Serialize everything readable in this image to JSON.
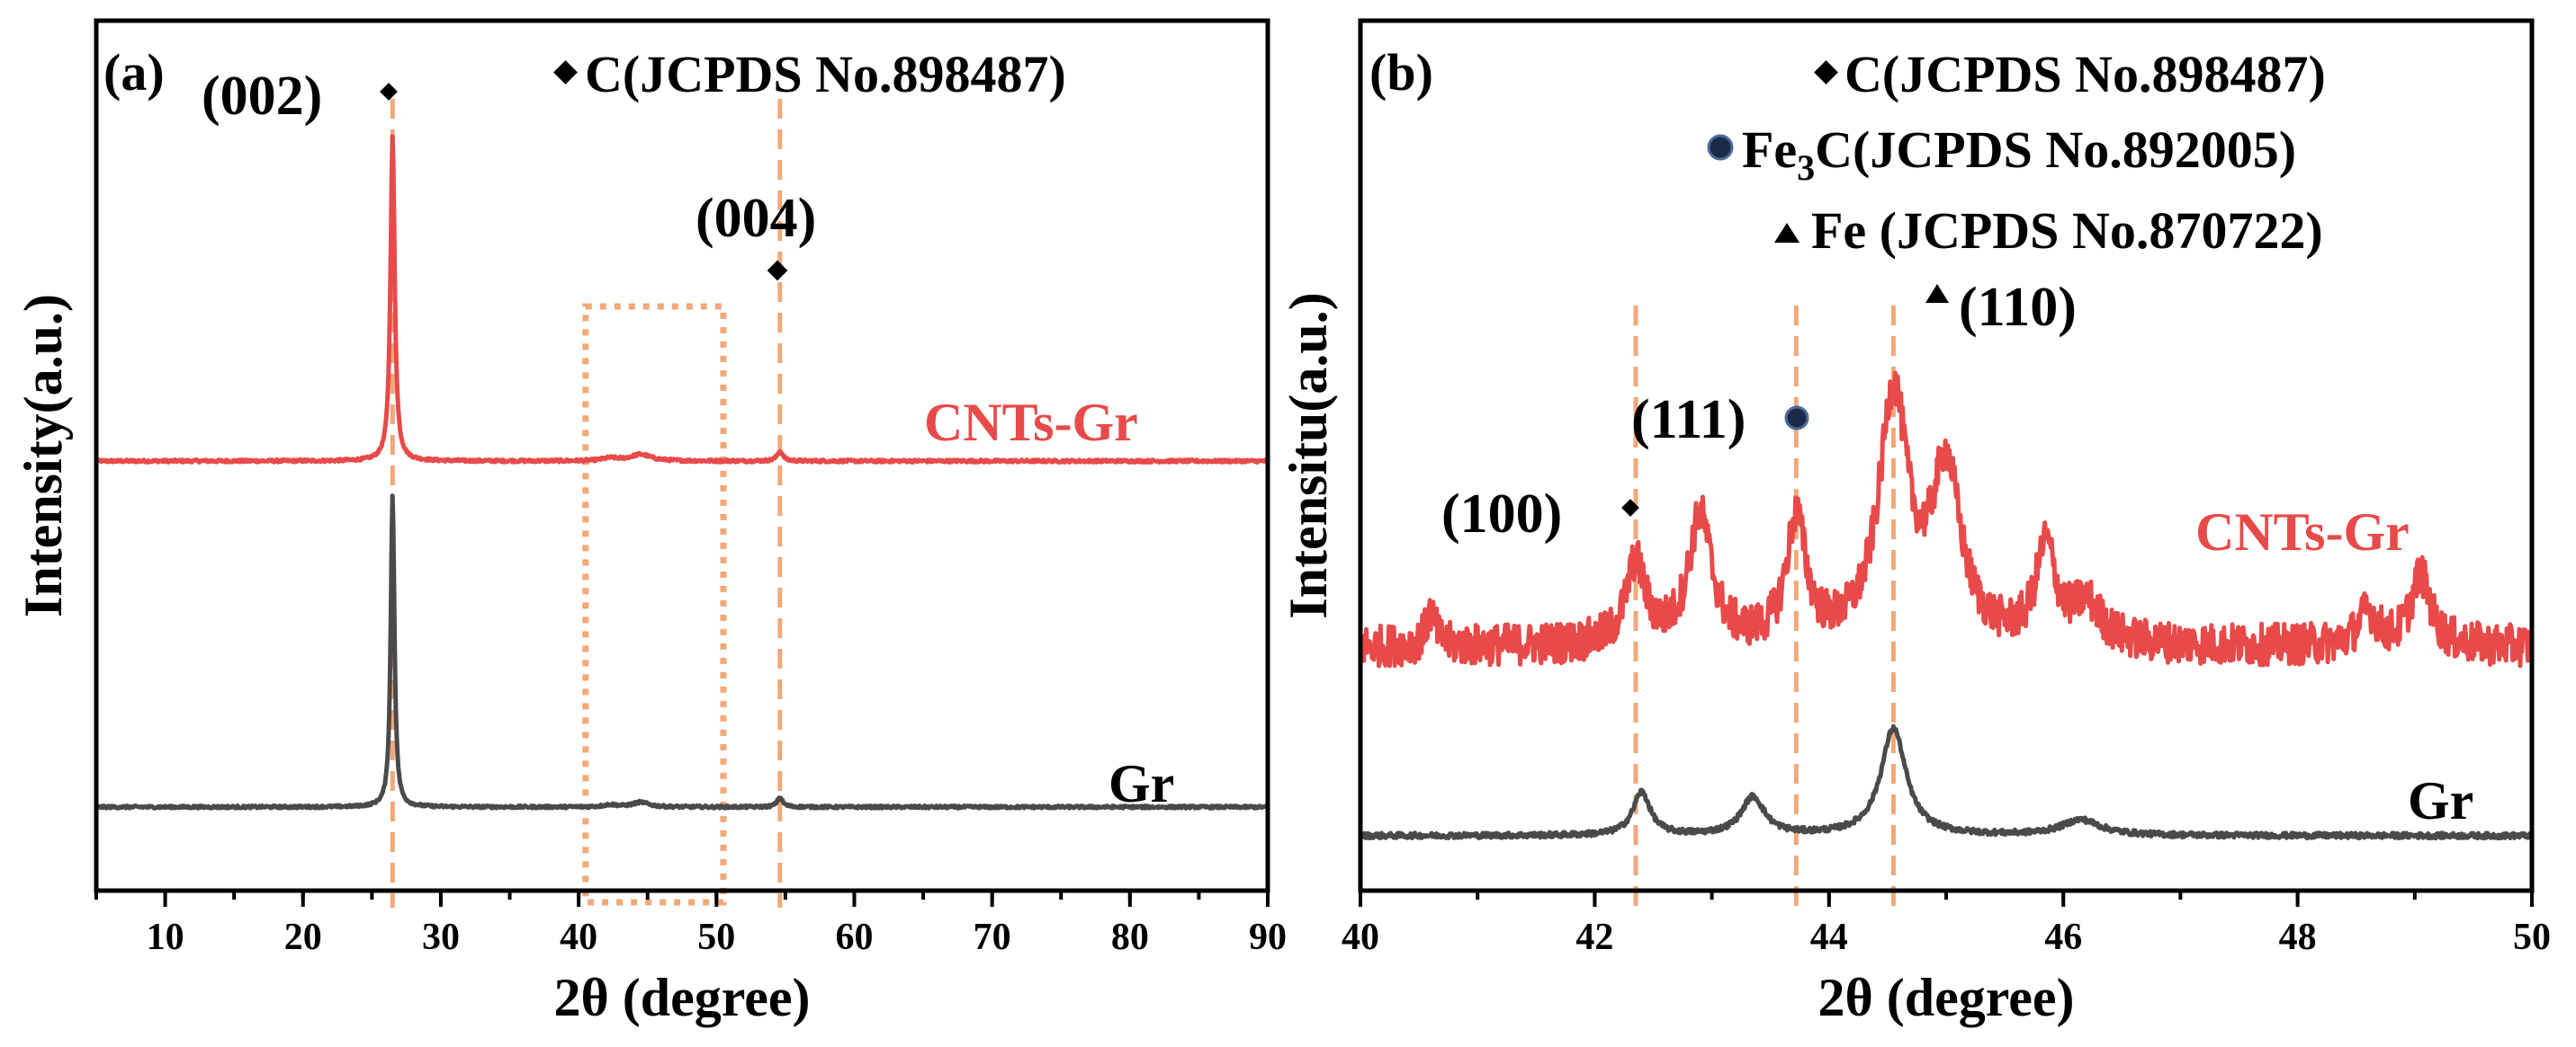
{
  "colors": {
    "cnts_gr": "#e84a4a",
    "gr": "#4a4a4a",
    "marker_line": "#f2a878",
    "box": "#f2a878",
    "fe3c_marker": "#1c2a48"
  },
  "chart_data": [
    {
      "id": "a",
      "type": "line",
      "panel_label": "(a)",
      "xlabel": "2θ (degree)",
      "ylabel": "Intensity(a.u.)",
      "xlim": [
        5,
        90
      ],
      "xticks": [
        10,
        20,
        30,
        40,
        50,
        60,
        70,
        80,
        90
      ],
      "yticks_shown": false,
      "legend": [
        {
          "marker": "diamond",
          "text": "C(JCPDS No.898487)"
        }
      ],
      "peak_labels": [
        {
          "text": "(002)",
          "x": 26.5,
          "marker": "diamond"
        },
        {
          "text": "(004)",
          "x": 54.6,
          "marker": "diamond"
        }
      ],
      "vlines": [
        26.5,
        54.6
      ],
      "highlight_box_x": [
        40.5,
        50.5
      ],
      "series": [
        {
          "name": "CNTs-Gr",
          "color_key": "cnts_gr",
          "baseline": 0.0,
          "peaks": [
            {
              "x": 26.5,
              "height": 1.0,
              "width": 0.18
            },
            {
              "x": 44.5,
              "height": 0.02,
              "width": 0.9
            },
            {
              "x": 42.3,
              "height": 0.008,
              "width": 0.7
            },
            {
              "x": 54.6,
              "height": 0.03,
              "width": 0.25
            }
          ]
        },
        {
          "name": "Gr",
          "color_key": "gr",
          "baseline": 0.0,
          "peaks": [
            {
              "x": 26.5,
              "height": 1.0,
              "width": 0.16
            },
            {
              "x": 44.5,
              "height": 0.015,
              "width": 0.7
            },
            {
              "x": 42.3,
              "height": 0.007,
              "width": 0.6
            },
            {
              "x": 54.6,
              "height": 0.03,
              "width": 0.25
            }
          ]
        }
      ]
    },
    {
      "id": "b",
      "type": "line",
      "panel_label": "(b)",
      "xlabel": "2θ (degree)",
      "ylabel": "Intensitu(a.u.)",
      "xlim": [
        40,
        50
      ],
      "xticks": [
        40,
        42,
        44,
        46,
        48,
        50
      ],
      "yticks_shown": false,
      "legend": [
        {
          "marker": "diamond",
          "text": "C(JCPDS No.898487)"
        },
        {
          "marker": "circle",
          "prefix": "Fe",
          "sub": "3",
          "suffix": "C(JCPDS No.892005)"
        },
        {
          "marker": "triangle",
          "text": "Fe (JCPDS No.870722)"
        }
      ],
      "peak_labels": [
        {
          "text": "(100)",
          "x": 42.35,
          "marker": "diamond"
        },
        {
          "text": "(111)",
          "x": 43.72,
          "marker": "circle"
        },
        {
          "text": "(110)",
          "x": 44.55,
          "marker": "triangle"
        }
      ],
      "vlines": [
        42.35,
        43.72,
        44.55
      ],
      "series": [
        {
          "name": "CNTs-Gr",
          "color_key": "cnts_gr",
          "noise": 0.22,
          "peaks": [
            {
              "x": 40.6,
              "height": 0.35,
              "width": 0.05
            },
            {
              "x": 42.35,
              "height": 0.85,
              "width": 0.1
            },
            {
              "x": 42.9,
              "height": 1.35,
              "width": 0.12
            },
            {
              "x": 43.72,
              "height": 1.3,
              "width": 0.1
            },
            {
              "x": 44.55,
              "height": 2.6,
              "width": 0.15
            },
            {
              "x": 45.0,
              "height": 1.8,
              "width": 0.15
            },
            {
              "x": 45.85,
              "height": 1.0,
              "width": 0.1
            },
            {
              "x": 46.2,
              "height": 0.4,
              "width": 0.15
            },
            {
              "x": 48.6,
              "height": 0.35,
              "width": 0.1
            },
            {
              "x": 49.05,
              "height": 0.75,
              "width": 0.1
            }
          ]
        },
        {
          "name": "Gr",
          "color_key": "gr",
          "noise": 0.015,
          "peaks": [
            {
              "x": 42.4,
              "height": 0.25,
              "width": 0.09
            },
            {
              "x": 43.35,
              "height": 0.22,
              "width": 0.12
            },
            {
              "x": 44.55,
              "height": 0.62,
              "width": 0.13
            },
            {
              "x": 46.15,
              "height": 0.09,
              "width": 0.2
            }
          ]
        }
      ]
    }
  ]
}
